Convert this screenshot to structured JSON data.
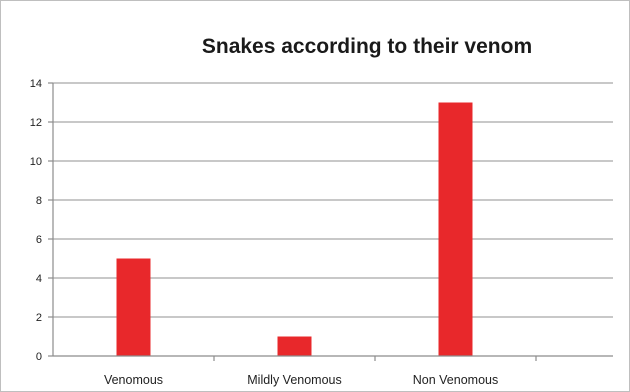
{
  "chart_data": {
    "type": "bar",
    "title": "Snakes according to their venom",
    "categories": [
      "Venomous",
      "Mildly Venomous",
      "Non Venomous"
    ],
    "values": [
      5,
      1,
      13
    ],
    "xlabel": "",
    "ylabel": "",
    "ylim": [
      0,
      14
    ],
    "yticks": [
      0,
      2,
      4,
      6,
      8,
      10,
      12,
      14
    ],
    "grid": true,
    "legend": "none",
    "bar_color": "#e8282b"
  }
}
